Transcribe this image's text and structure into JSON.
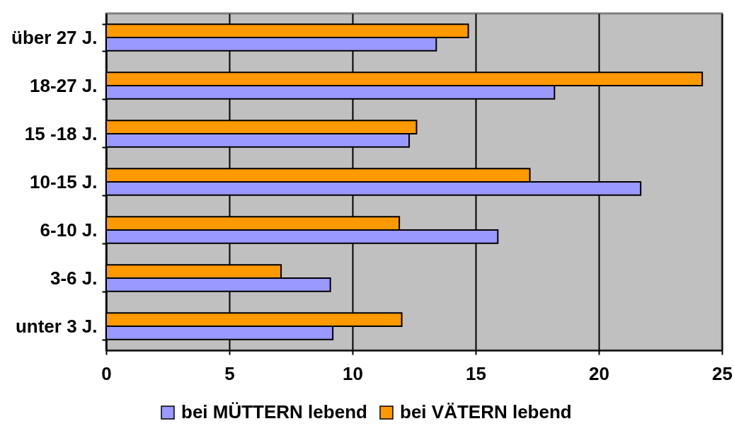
{
  "chart_data": {
    "type": "bar",
    "orientation": "horizontal",
    "categories": [
      "über 27 J.",
      "18-27 J.",
      "15 -18 J.",
      "10-15 J.",
      "6-10 J.",
      "3-6 J.",
      "unter 3 J."
    ],
    "series": [
      {
        "name": "bei MÜTTERN lebend",
        "color": "#9999ff",
        "values": [
          13.4,
          18.2,
          12.3,
          21.7,
          15.9,
          9.1,
          9.2
        ]
      },
      {
        "name": "bei VÄTERN lebend",
        "color": "#ff9900",
        "values": [
          14.7,
          24.2,
          12.6,
          17.2,
          11.9,
          7.1,
          12.0
        ]
      }
    ],
    "xlim": [
      0,
      25
    ],
    "xticks": [
      0,
      5,
      10,
      15,
      20,
      25
    ],
    "grid": "x",
    "legend": "bottom"
  }
}
